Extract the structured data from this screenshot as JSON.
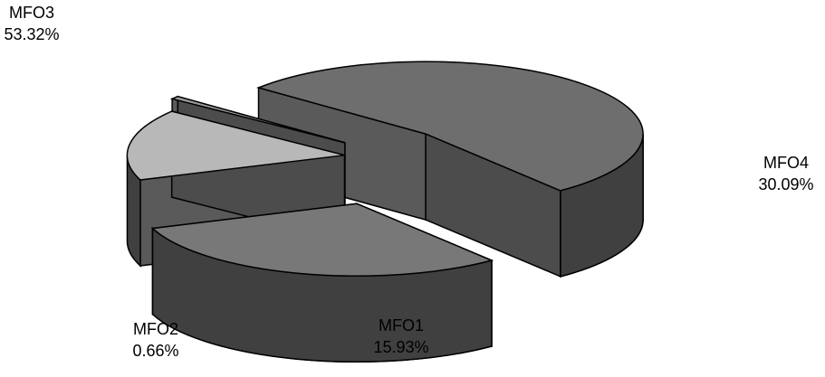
{
  "chart_data": {
    "type": "pie",
    "title": "",
    "exploded": true,
    "three_d": true,
    "slices": [
      {
        "name": "MFO1",
        "value": 15.93,
        "label": "15.93%",
        "color": "#b8b8b8"
      },
      {
        "name": "MFO2",
        "value": 0.66,
        "label": "0.66%",
        "color": "#9a9a9a"
      },
      {
        "name": "MFO3",
        "value": 53.32,
        "label": "53.32%",
        "color": "#6e6e6e"
      },
      {
        "name": "MFO4",
        "value": 30.09,
        "label": "30.09%",
        "color": "#787878"
      }
    ],
    "side_color": "#404040",
    "edge_color": "#000000"
  }
}
